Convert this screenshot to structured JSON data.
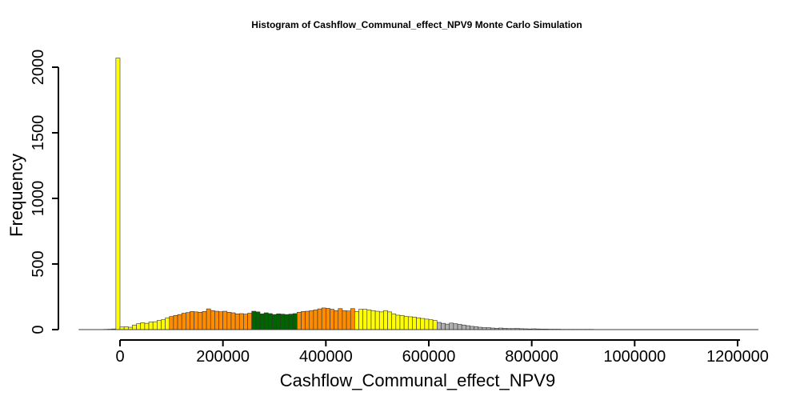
{
  "chart_data": {
    "type": "bar",
    "title": "Histogram of  Cashflow_Communal_effect_NPV9  Monte Carlo Simulation",
    "xlabel": "Cashflow_Communal_effect_NPV9",
    "ylabel": "Frequency",
    "xlim": [
      -85000,
      1220000
    ],
    "ylim": [
      0,
      2000
    ],
    "x_ticks": [
      0,
      200000,
      400000,
      600000,
      800000,
      1000000,
      1200000
    ],
    "x_tick_labels": [
      "0",
      "200000",
      "400000",
      "600000",
      "800000",
      "1000000",
      "1200000"
    ],
    "y_ticks": [
      0,
      500,
      1000,
      1500,
      2000
    ],
    "y_tick_labels": [
      "0",
      "500",
      "1000",
      "1500",
      "2000"
    ],
    "bin_width": 8000,
    "bin_start": -80000,
    "colors": {
      "yellow": "#ffff00",
      "orange": "#ff8c00",
      "darkgreen": "#006400",
      "grey": "#b0b0b0"
    },
    "bin_colors": [
      "grey",
      "grey",
      "grey",
      "grey",
      "grey",
      "grey",
      "grey",
      "grey",
      "grey",
      "yellow",
      "yellow",
      "yellow",
      "yellow",
      "yellow",
      "yellow",
      "yellow",
      "yellow",
      "yellow",
      "yellow",
      "yellow",
      "yellow",
      "yellow",
      "orange",
      "orange",
      "orange",
      "orange",
      "orange",
      "orange",
      "orange",
      "orange",
      "orange",
      "orange",
      "orange",
      "orange",
      "orange",
      "orange",
      "orange",
      "orange",
      "orange",
      "orange",
      "orange",
      "orange",
      "darkgreen",
      "darkgreen",
      "darkgreen",
      "darkgreen",
      "darkgreen",
      "darkgreen",
      "darkgreen",
      "darkgreen",
      "darkgreen",
      "darkgreen",
      "darkgreen",
      "orange",
      "orange",
      "orange",
      "orange",
      "orange",
      "orange",
      "orange",
      "orange",
      "orange",
      "orange",
      "orange",
      "orange",
      "orange",
      "orange",
      "yellow",
      "yellow",
      "yellow",
      "yellow",
      "yellow",
      "yellow",
      "yellow",
      "yellow",
      "yellow",
      "yellow",
      "yellow",
      "yellow",
      "yellow",
      "yellow",
      "yellow",
      "yellow",
      "yellow",
      "yellow",
      "yellow",
      "yellow",
      "grey",
      "grey",
      "grey",
      "grey",
      "grey",
      "grey",
      "grey",
      "grey",
      "grey",
      "grey",
      "grey",
      "grey",
      "grey",
      "grey",
      "grey",
      "grey",
      "grey",
      "grey",
      "grey",
      "grey",
      "grey",
      "grey",
      "grey",
      "grey",
      "grey",
      "grey",
      "grey",
      "grey",
      "grey",
      "grey",
      "grey",
      "grey",
      "grey",
      "grey",
      "grey",
      "grey",
      "grey",
      "grey",
      "grey",
      "grey",
      "grey",
      "grey",
      "grey",
      "grey",
      "grey",
      "grey",
      "grey",
      "grey",
      "grey",
      "grey",
      "grey",
      "grey",
      "grey",
      "grey",
      "grey",
      "grey",
      "grey",
      "grey",
      "grey",
      "grey",
      "grey",
      "grey",
      "grey",
      "grey",
      "grey",
      "grey",
      "grey",
      "grey",
      "grey",
      "grey",
      "grey",
      "grey",
      "grey",
      "grey",
      "grey",
      "grey",
      "grey",
      "grey"
    ],
    "values": [
      1,
      1,
      1,
      1,
      1,
      1,
      2,
      3,
      5,
      2070,
      20,
      22,
      18,
      35,
      45,
      52,
      48,
      58,
      60,
      70,
      75,
      90,
      100,
      108,
      115,
      125,
      130,
      138,
      135,
      132,
      138,
      158,
      145,
      140,
      136,
      140,
      132,
      128,
      120,
      122,
      118,
      125,
      140,
      135,
      120,
      128,
      122,
      115,
      120,
      118,
      115,
      118,
      122,
      132,
      138,
      140,
      145,
      150,
      158,
      165,
      162,
      155,
      145,
      160,
      145,
      142,
      160,
      138,
      155,
      155,
      150,
      145,
      140,
      135,
      145,
      135,
      120,
      110,
      108,
      100,
      98,
      95,
      90,
      85,
      80,
      75,
      70,
      55,
      48,
      42,
      50,
      45,
      40,
      35,
      30,
      25,
      22,
      18,
      15,
      15,
      12,
      10,
      12,
      10,
      8,
      8,
      9,
      7,
      6,
      5,
      6,
      5,
      4,
      4,
      3,
      3,
      3,
      2,
      2,
      2,
      2,
      2,
      2,
      2,
      2,
      1,
      1,
      1,
      1,
      1,
      1,
      1,
      1,
      1,
      1,
      1,
      1,
      1,
      1,
      1,
      1,
      1,
      1,
      1,
      1,
      1,
      1,
      1,
      1,
      1,
      1,
      1,
      1,
      1,
      1,
      1,
      1,
      1,
      1,
      1,
      1,
      1,
      1,
      1,
      1
    ]
  }
}
